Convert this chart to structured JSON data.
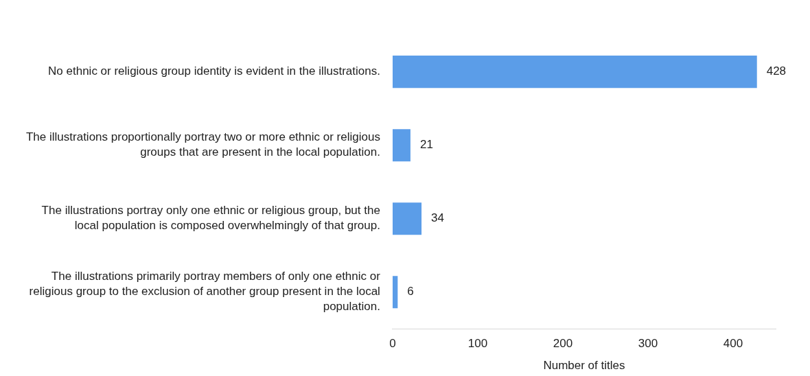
{
  "chart_data": {
    "type": "bar",
    "orientation": "horizontal",
    "xlabel": "Number of titles",
    "categories": [
      "No ethnic or religious group identity is evident in the illustrations.",
      "The illustrations proportionally portray two or more ethnic or religious groups that are present in the local population.",
      "The illustrations portray only one ethnic or religious group, but the local population is composed overwhelmingly of that group.",
      "The illustrations primarily portray members of only one ethnic or religious group to the exclusion of another group present in the local population."
    ],
    "values": [
      428,
      21,
      34,
      6
    ],
    "color": "#5b9de8",
    "xlim": [
      0,
      450
    ],
    "xticks": [
      0,
      100,
      200,
      300,
      400
    ],
    "data_labels": true,
    "grid": false,
    "legend": false
  }
}
